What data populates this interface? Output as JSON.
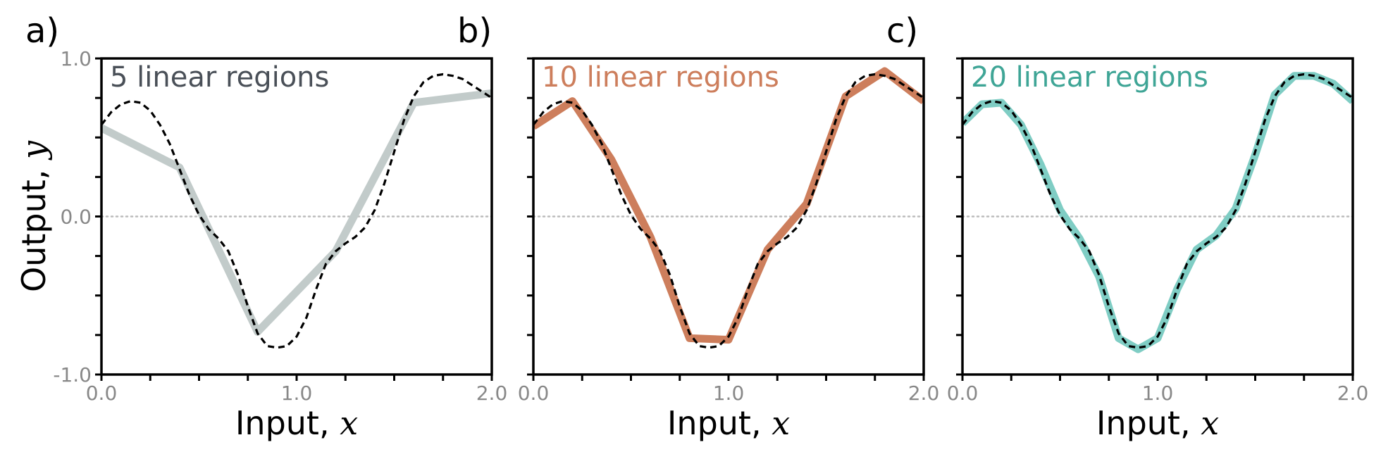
{
  "chart_data": [
    {
      "type": "line",
      "panel_label": "a)",
      "title": "5 linear regions",
      "xlabel": "Input, ",
      "xlabel_var": "x",
      "ylabel": "Output, ",
      "ylabel_var": "y",
      "xlim": [
        0,
        2
      ],
      "ylim": [
        -1,
        1
      ],
      "xticks": [
        "0.0",
        "1.0",
        "2.0"
      ],
      "yticks": [
        "-1.0",
        "0.0",
        "1.0"
      ],
      "zero_line": true,
      "color": "#c2cbca",
      "title_color": "#4a5058",
      "series": [
        {
          "x": [
            0.0,
            0.4,
            0.8,
            1.2,
            1.6,
            2.0
          ],
          "y": [
            0.56,
            0.31,
            -0.73,
            -0.22,
            0.72,
            0.78
          ]
        }
      ],
      "reference": true
    },
    {
      "type": "line",
      "panel_label": "b)",
      "title": "10 linear regions",
      "xlabel": "Input, ",
      "xlabel_var": "x",
      "xlim": [
        0,
        2
      ],
      "ylim": [
        -1,
        1
      ],
      "xticks": [
        "0.0",
        "1.0",
        "2.0"
      ],
      "zero_line": true,
      "color": "#cd7e5c",
      "title_color": "#cd7e5c",
      "series": [
        {
          "x": [
            0.0,
            0.2,
            0.4,
            0.6,
            0.8,
            1.0,
            1.2,
            1.4,
            1.6,
            1.8,
            2.0
          ],
          "y": [
            0.57,
            0.73,
            0.36,
            -0.13,
            -0.77,
            -0.78,
            -0.21,
            0.08,
            0.76,
            0.92,
            0.73
          ]
        }
      ],
      "reference": true
    },
    {
      "type": "line",
      "panel_label": "c)",
      "title": "20 linear regions",
      "xlabel": "Input, ",
      "xlabel_var": "x",
      "xlim": [
        0,
        2
      ],
      "ylim": [
        -1,
        1
      ],
      "xticks": [
        "0.0",
        "1.0",
        "2.0"
      ],
      "zero_line": true,
      "color": "#7fcdc4",
      "title_color": "#3fa596",
      "series": [
        {
          "x": [
            0.0,
            0.1,
            0.2,
            0.3,
            0.4,
            0.5,
            0.6,
            0.7,
            0.8,
            0.9,
            1.0,
            1.1,
            1.2,
            1.3,
            1.4,
            1.5,
            1.6,
            1.7,
            1.8,
            1.9,
            2.0
          ],
          "y": [
            0.59,
            0.71,
            0.72,
            0.58,
            0.33,
            0.04,
            -0.14,
            -0.38,
            -0.77,
            -0.84,
            -0.77,
            -0.46,
            -0.21,
            -0.12,
            0.05,
            0.39,
            0.77,
            0.89,
            0.89,
            0.84,
            0.73
          ]
        }
      ],
      "reference": true
    }
  ],
  "reference_curve": {
    "style": "dashed",
    "color": "#000000",
    "x": [
      0.0,
      0.05,
      0.1,
      0.15,
      0.2,
      0.25,
      0.3,
      0.35,
      0.4,
      0.45,
      0.5,
      0.55,
      0.6,
      0.65,
      0.7,
      0.75,
      0.8,
      0.85,
      0.9,
      0.95,
      1.0,
      1.05,
      1.1,
      1.15,
      1.2,
      1.25,
      1.3,
      1.35,
      1.4,
      1.45,
      1.5,
      1.55,
      1.6,
      1.65,
      1.7,
      1.75,
      1.8,
      1.85,
      1.9,
      1.95,
      2.0
    ],
    "y": [
      0.58,
      0.66,
      0.71,
      0.73,
      0.72,
      0.67,
      0.58,
      0.46,
      0.3,
      0.14,
      0.01,
      -0.08,
      -0.14,
      -0.22,
      -0.37,
      -0.57,
      -0.74,
      -0.82,
      -0.83,
      -0.82,
      -0.76,
      -0.64,
      -0.46,
      -0.3,
      -0.22,
      -0.17,
      -0.13,
      -0.07,
      0.04,
      0.21,
      0.41,
      0.61,
      0.76,
      0.85,
      0.89,
      0.9,
      0.89,
      0.87,
      0.83,
      0.79,
      0.75
    ]
  }
}
